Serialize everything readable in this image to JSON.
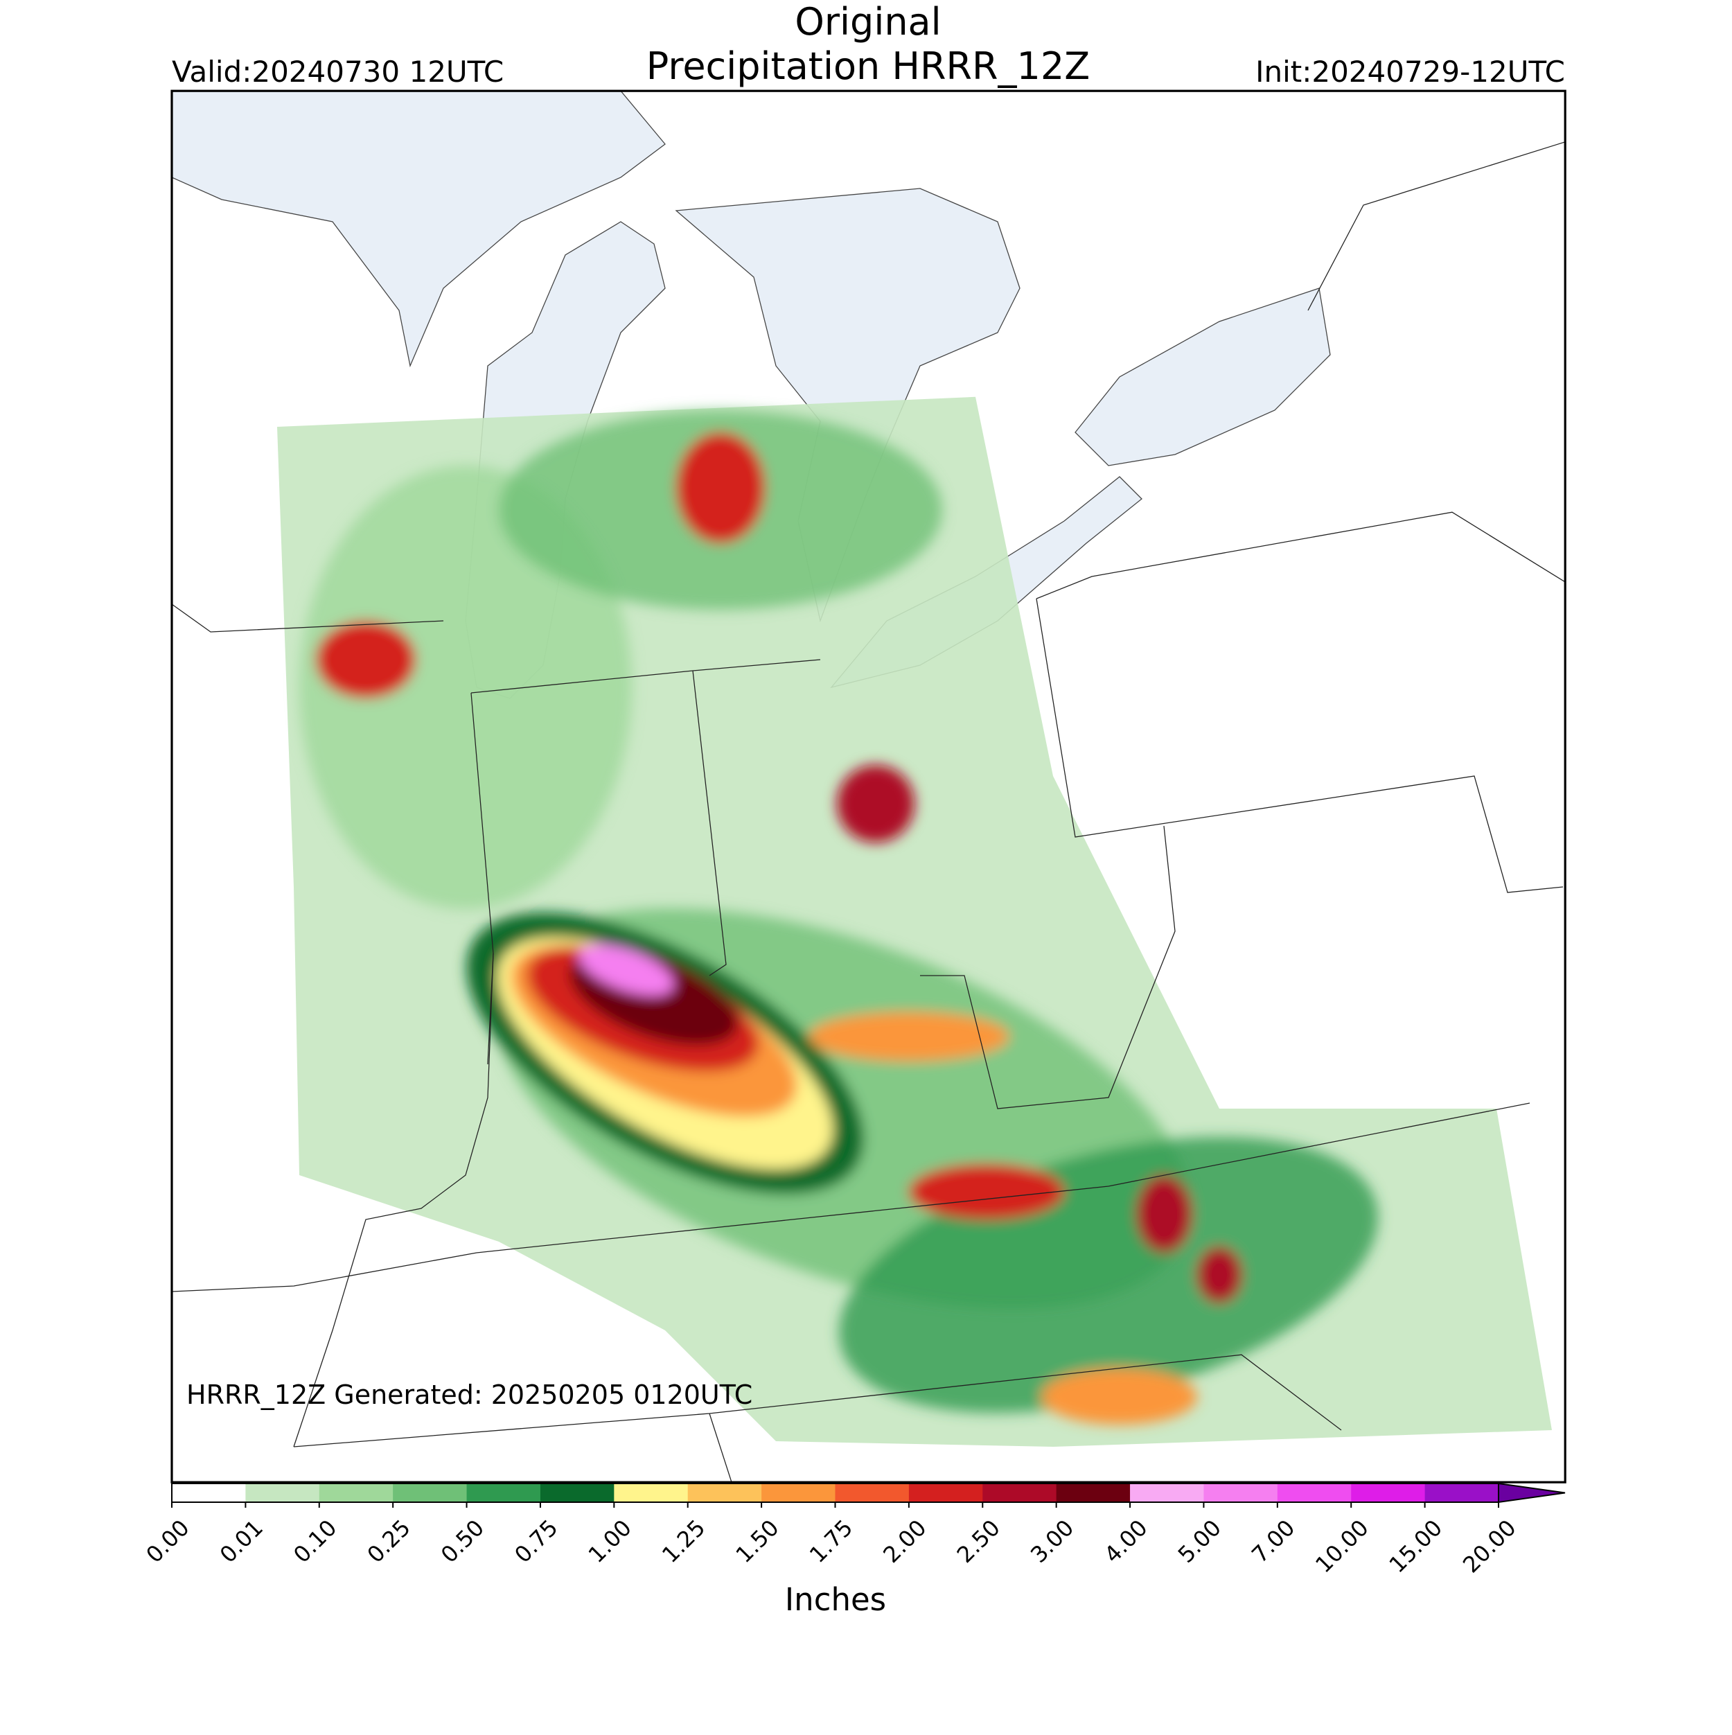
{
  "header": {
    "title_lines": [
      "Original",
      "Precipitation HRRR_12Z"
    ],
    "valid": "Valid:20240730 12UTC",
    "init": "Init:20240729-12UTC"
  },
  "map": {
    "annotation": "HRRR_12Z Generated: 20250205 0120UTC"
  },
  "colorbar": {
    "label": "Inches",
    "ticks": [
      {
        "value": 0,
        "label": "0.00"
      },
      {
        "value": 0.01,
        "label": "0.01"
      },
      {
        "value": 0.1,
        "label": "0.10"
      },
      {
        "value": 0.25,
        "label": "0.25"
      },
      {
        "value": 0.5,
        "label": "0.50"
      },
      {
        "value": 0.75,
        "label": "0.75"
      },
      {
        "value": 1,
        "label": "1.00"
      },
      {
        "value": 1.25,
        "label": "1.25"
      },
      {
        "value": 1.5,
        "label": "1.50"
      },
      {
        "value": 1.75,
        "label": "1.75"
      },
      {
        "value": 2,
        "label": "2.00"
      },
      {
        "value": 2.5,
        "label": "2.50"
      },
      {
        "value": 3,
        "label": "3.00"
      },
      {
        "value": 4,
        "label": "4.00"
      },
      {
        "value": 5,
        "label": "5.00"
      },
      {
        "value": 7,
        "label": "7.00"
      },
      {
        "value": 10,
        "label": "10.00"
      },
      {
        "value": 15,
        "label": "15.00"
      },
      {
        "value": 20,
        "label": "20.00"
      }
    ],
    "colors": [
      "#ffffff",
      "#c6e7c1",
      "#9fd89a",
      "#6fc077",
      "#2f9a50",
      "#0a6a2c",
      "#fff48c",
      "#fdc25a",
      "#fb963b",
      "#f2582d",
      "#d4201f",
      "#ad0a28",
      "#6c0010",
      "#f8aaf3",
      "#f57ff0",
      "#ef4df0",
      "#de1de8",
      "#9a10c8",
      "#6a00a0"
    ]
  }
}
